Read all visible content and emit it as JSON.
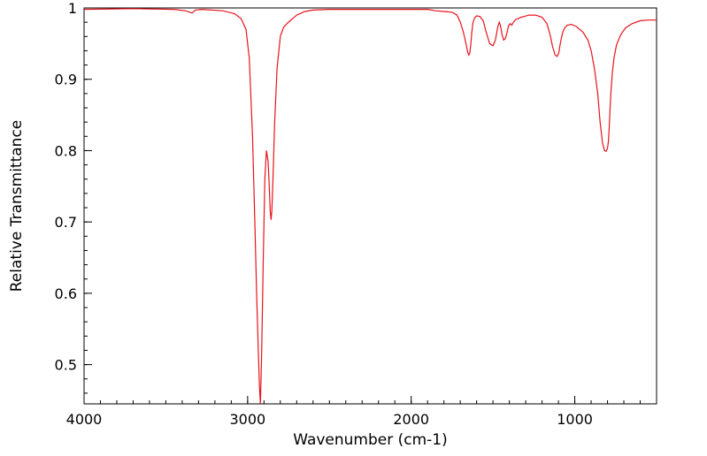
{
  "chart_data": {
    "type": "line",
    "title": "",
    "xlabel": "Wavenumber (cm-1)",
    "ylabel": "Relative Transmittance",
    "xlim": [
      4000,
      500
    ],
    "ylim": [
      0.445,
      1.0
    ],
    "x_reversed": true,
    "grid": false,
    "legend": "none",
    "x_ticks": [
      4000,
      3000,
      2000,
      1000
    ],
    "x_tick_labels": [
      "4000",
      "3000",
      "2000",
      "1000"
    ],
    "y_ticks": [
      0.5,
      0.6,
      0.7,
      0.8,
      0.9,
      1.0
    ],
    "y_tick_labels": [
      "0.5",
      "0.6",
      "0.7",
      "0.8",
      "0.9",
      "1"
    ],
    "line_color": "#e8131c",
    "series": [
      {
        "x": [
          4000,
          3700,
          3450,
          3380,
          3340,
          3320,
          3280,
          3150,
          3080,
          3040,
          3010,
          2990,
          2970,
          2955,
          2945,
          2935,
          2928,
          2922,
          2915,
          2905,
          2895,
          2885,
          2875,
          2868,
          2862,
          2857,
          2852,
          2845,
          2835,
          2820,
          2800,
          2780,
          2760,
          2740,
          2720,
          2700,
          2650,
          2600,
          2500,
          2200,
          1900,
          1850,
          1800,
          1750,
          1720,
          1700,
          1680,
          1665,
          1655,
          1648,
          1642,
          1636,
          1630,
          1622,
          1612,
          1600,
          1580,
          1560,
          1540,
          1520,
          1500,
          1485,
          1472,
          1462,
          1455,
          1445,
          1435,
          1425,
          1415,
          1405,
          1395,
          1385,
          1375,
          1360,
          1345,
          1330,
          1310,
          1280,
          1240,
          1200,
          1170,
          1150,
          1135,
          1120,
          1108,
          1098,
          1090,
          1080,
          1072,
          1062,
          1045,
          1020,
          990,
          950,
          920,
          900,
          880,
          860,
          845,
          830,
          818,
          808,
          800,
          795,
          790,
          785,
          778,
          770,
          760,
          745,
          720,
          690,
          650,
          600,
          550,
          500
        ],
        "y": [
          0.998,
          0.999,
          0.998,
          0.996,
          0.993,
          0.997,
          0.998,
          0.996,
          0.992,
          0.985,
          0.97,
          0.93,
          0.82,
          0.69,
          0.6,
          0.52,
          0.47,
          0.445,
          0.51,
          0.64,
          0.76,
          0.8,
          0.785,
          0.75,
          0.715,
          0.703,
          0.715,
          0.76,
          0.84,
          0.915,
          0.96,
          0.973,
          0.978,
          0.982,
          0.986,
          0.99,
          0.995,
          0.997,
          0.998,
          0.998,
          0.998,
          0.996,
          0.995,
          0.994,
          0.99,
          0.98,
          0.965,
          0.95,
          0.938,
          0.934,
          0.937,
          0.948,
          0.965,
          0.98,
          0.986,
          0.989,
          0.988,
          0.982,
          0.965,
          0.95,
          0.947,
          0.955,
          0.972,
          0.98,
          0.976,
          0.963,
          0.955,
          0.957,
          0.965,
          0.975,
          0.978,
          0.976,
          0.98,
          0.984,
          0.985,
          0.987,
          0.988,
          0.99,
          0.99,
          0.987,
          0.978,
          0.962,
          0.945,
          0.934,
          0.932,
          0.937,
          0.948,
          0.96,
          0.967,
          0.972,
          0.976,
          0.977,
          0.974,
          0.966,
          0.955,
          0.94,
          0.915,
          0.88,
          0.84,
          0.81,
          0.8,
          0.799,
          0.803,
          0.812,
          0.83,
          0.855,
          0.885,
          0.91,
          0.93,
          0.948,
          0.962,
          0.972,
          0.978,
          0.982,
          0.983,
          0.983
        ]
      }
    ]
  }
}
